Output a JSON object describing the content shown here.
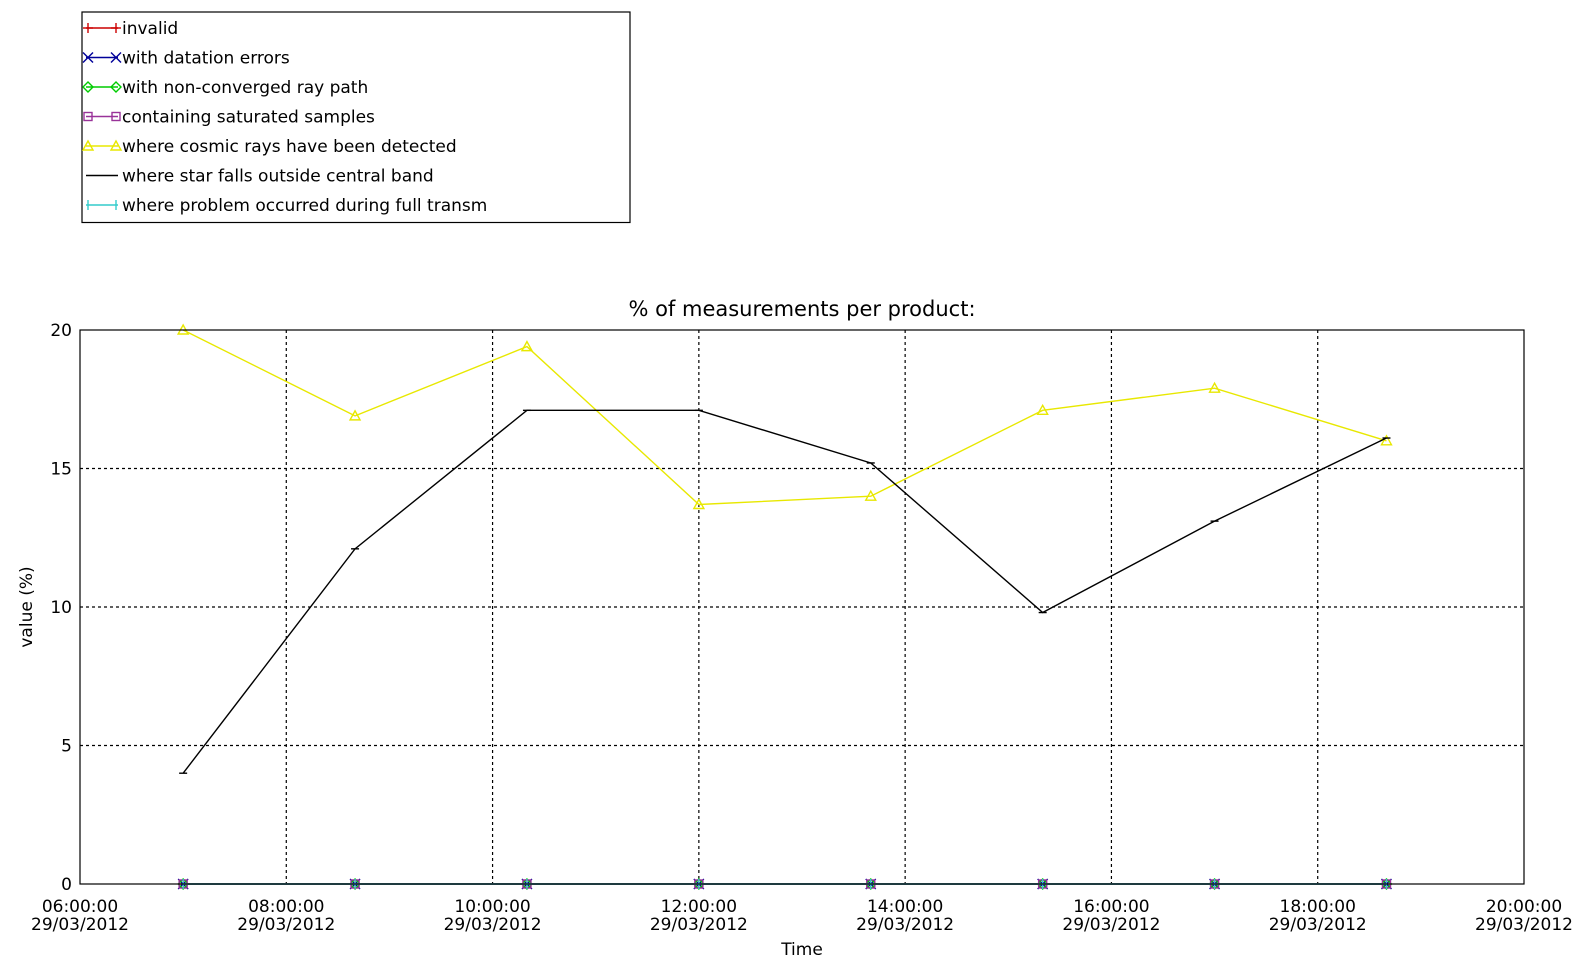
{
  "chart_data": {
    "type": "line",
    "title": "% of measurements per product:",
    "xlabel": "Time",
    "ylabel": "value (%)",
    "ylim": [
      0,
      20
    ],
    "xlim": [
      "29/03/2012 06:00:00",
      "29/03/2012 20:00:00"
    ],
    "grid": true,
    "legend_position": "top-left",
    "x_ticks": [
      {
        "time": "06:00:00",
        "date": "29/03/2012"
      },
      {
        "time": "08:00:00",
        "date": "29/03/2012"
      },
      {
        "time": "10:00:00",
        "date": "29/03/2012"
      },
      {
        "time": "12:00:00",
        "date": "29/03/2012"
      },
      {
        "time": "14:00:00",
        "date": "29/03/2012"
      },
      {
        "time": "16:00:00",
        "date": "29/03/2012"
      },
      {
        "time": "18:00:00",
        "date": "29/03/2012"
      },
      {
        "time": "20:00:00",
        "date": "29/03/2012"
      }
    ],
    "y_ticks": [
      "0",
      "5",
      "10",
      "15",
      "20"
    ],
    "x": [
      "29/03/2012 07:00",
      "29/03/2012 08:40",
      "29/03/2012 10:20",
      "29/03/2012 12:00",
      "29/03/2012 13:40",
      "29/03/2012 15:20",
      "29/03/2012 17:00",
      "29/03/2012 18:40"
    ],
    "series": [
      {
        "name": "invalid",
        "color": "#cc0000",
        "marker": "plus",
        "values": [
          0,
          0,
          0,
          0,
          0,
          0,
          0,
          0
        ]
      },
      {
        "name": "with datation errors",
        "color": "#000099",
        "marker": "x",
        "values": [
          0,
          0,
          0,
          0,
          0,
          0,
          0,
          0
        ]
      },
      {
        "name": "with non-converged ray path",
        "color": "#00cc00",
        "marker": "diamond",
        "values": [
          0,
          0,
          0,
          0,
          0,
          0,
          0,
          0
        ]
      },
      {
        "name": "containing saturated samples",
        "color": "#993399",
        "marker": "square",
        "values": [
          0,
          0,
          0,
          0,
          0,
          0,
          0,
          0
        ]
      },
      {
        "name": "where cosmic rays have been detected",
        "color": "#e8e800",
        "marker": "triangle",
        "values": [
          20,
          16.9,
          19.4,
          13.7,
          14,
          17.1,
          17.9,
          16
        ]
      },
      {
        "name": "where star falls outside central band",
        "color": "#000000",
        "marker": "none",
        "values": [
          4,
          12.1,
          17.1,
          17.1,
          15.2,
          9.8,
          13.1,
          16.1
        ]
      },
      {
        "name": "where problem occurred during full transm",
        "color": "#33cccc",
        "marker": "vbar",
        "values": [
          0,
          0,
          0,
          0,
          0,
          0,
          0,
          0
        ]
      }
    ]
  }
}
